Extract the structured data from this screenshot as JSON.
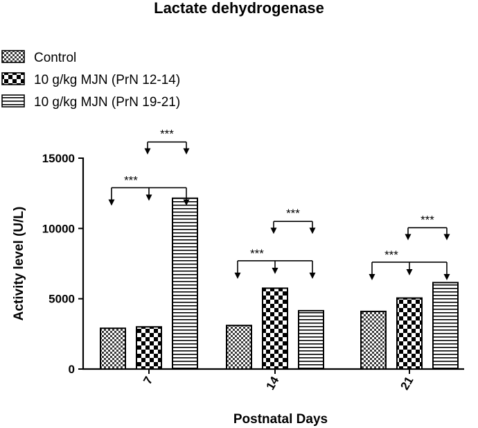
{
  "chart_data": {
    "type": "bar",
    "title": "Lactate dehydrogenase",
    "xlabel": "Postnatal Days",
    "ylabel": "Activity level (U/L)",
    "ylim": [
      0,
      15000
    ],
    "yticks": [
      0,
      5000,
      10000,
      15000
    ],
    "categories": [
      "7",
      "14",
      "21"
    ],
    "legend_position": "top-left",
    "series": [
      {
        "name": "Control",
        "pattern": "checker-fine",
        "values": [
          2900,
          3100,
          4100
        ]
      },
      {
        "name": "10 g/kg MJN (PrN 12-14)",
        "pattern": "checker-coarse",
        "values": [
          3000,
          5750,
          5050
        ]
      },
      {
        "name": "10 g/kg MJN (PrN 19-21)",
        "pattern": "horizontal-stripes",
        "values": [
          12150,
          4150,
          6150
        ]
      }
    ],
    "significance": [
      {
        "category": "7",
        "comparison": "Control vs 10 g/kg MJN (PrN 12-14) vs 10 g/kg MJN (PrN 19-21)",
        "label": "***"
      },
      {
        "category": "7",
        "comparison": "10 g/kg MJN (PrN 12-14) vs 10 g/kg MJN (PrN 19-21)",
        "label": "***"
      },
      {
        "category": "14",
        "comparison": "Control vs 10 g/kg MJN (PrN 12-14) vs 10 g/kg MJN (PrN 19-21)",
        "label": "***"
      },
      {
        "category": "14",
        "comparison": "10 g/kg MJN (PrN 12-14) vs 10 g/kg MJN (PrN 19-21)",
        "label": "***"
      },
      {
        "category": "21",
        "comparison": "Control vs 10 g/kg MJN (PrN 12-14) vs 10 g/kg MJN (PrN 19-21)",
        "label": "***"
      },
      {
        "category": "21",
        "comparison": "10 g/kg MJN (PrN 12-14) vs 10 g/kg MJN (PrN 19-21)",
        "label": "***"
      }
    ]
  }
}
